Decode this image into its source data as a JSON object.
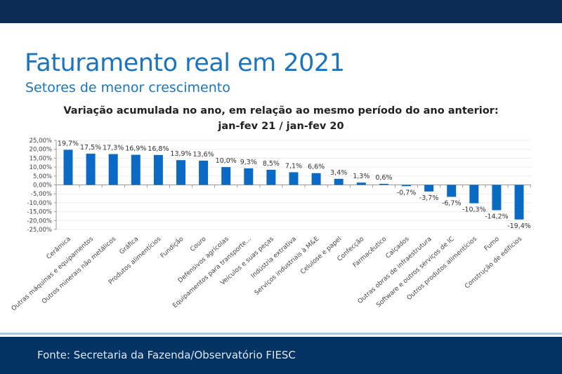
{
  "header": {
    "title": "Faturamento real em 2021",
    "subtitle": "Setores de menor crescimento"
  },
  "footer": {
    "source": "Fonte: Secretaria da Fazenda/Observatório FIESC"
  },
  "colors": {
    "bar": "#0b6bc4",
    "band": "#0b2d55",
    "title": "#1c75bc"
  },
  "chart_data": {
    "type": "bar",
    "title": "Variação acumulada no ano, em relação ao mesmo período do ano anterior:",
    "subtitle": "jan-fev 21 / jan-fev 20",
    "categories": [
      "Cerâmica",
      "Outras máquinas e equipamentos",
      "Outros minerais não metálicos",
      "Gráfica",
      "Produtos alimentícios",
      "Fundição",
      "Couro",
      "Defensivos agrícolas",
      "Equipamentos para transporte...",
      "Veículos e suas peças",
      "Indústria extrativa",
      "Serviços industriais à M&E",
      "Celulose e papel",
      "Confecção",
      "Farmacêutico",
      "Calçados",
      "Outras obras de infraestrutura",
      "Software e outros serviços de IC",
      "Outros produtos alimentícios",
      "Fumo",
      "Construção de edifícios"
    ],
    "values": [
      19.7,
      17.5,
      17.3,
      16.9,
      16.8,
      13.9,
      13.6,
      10.0,
      9.3,
      8.5,
      7.1,
      6.6,
      3.4,
      1.3,
      0.6,
      -0.7,
      -3.7,
      -6.7,
      -10.3,
      -14.2,
      -19.4
    ],
    "data_labels": [
      "19,7%",
      "17,5%",
      "17,3%",
      "16,9%",
      "16,8%",
      "13,9%",
      "13,6%",
      "10,0%",
      "9,3%",
      "8,5%",
      "7,1%",
      "6,6%",
      "3,4%",
      "1,3%",
      "0,6%",
      "-0,7%",
      "-3,7%",
      "-6,7%",
      "-10,3%",
      "-14,2%",
      "-19,4%"
    ],
    "ylim": [
      -25,
      25
    ],
    "yticks": [
      "25,00%",
      "20,00%",
      "15,00%",
      "10,00%",
      "5,00%",
      "0,00%",
      "-5,00%",
      "-10,00%",
      "-15,00%",
      "-20,00%",
      "-25,00%"
    ],
    "grid": true,
    "legend": "none"
  }
}
